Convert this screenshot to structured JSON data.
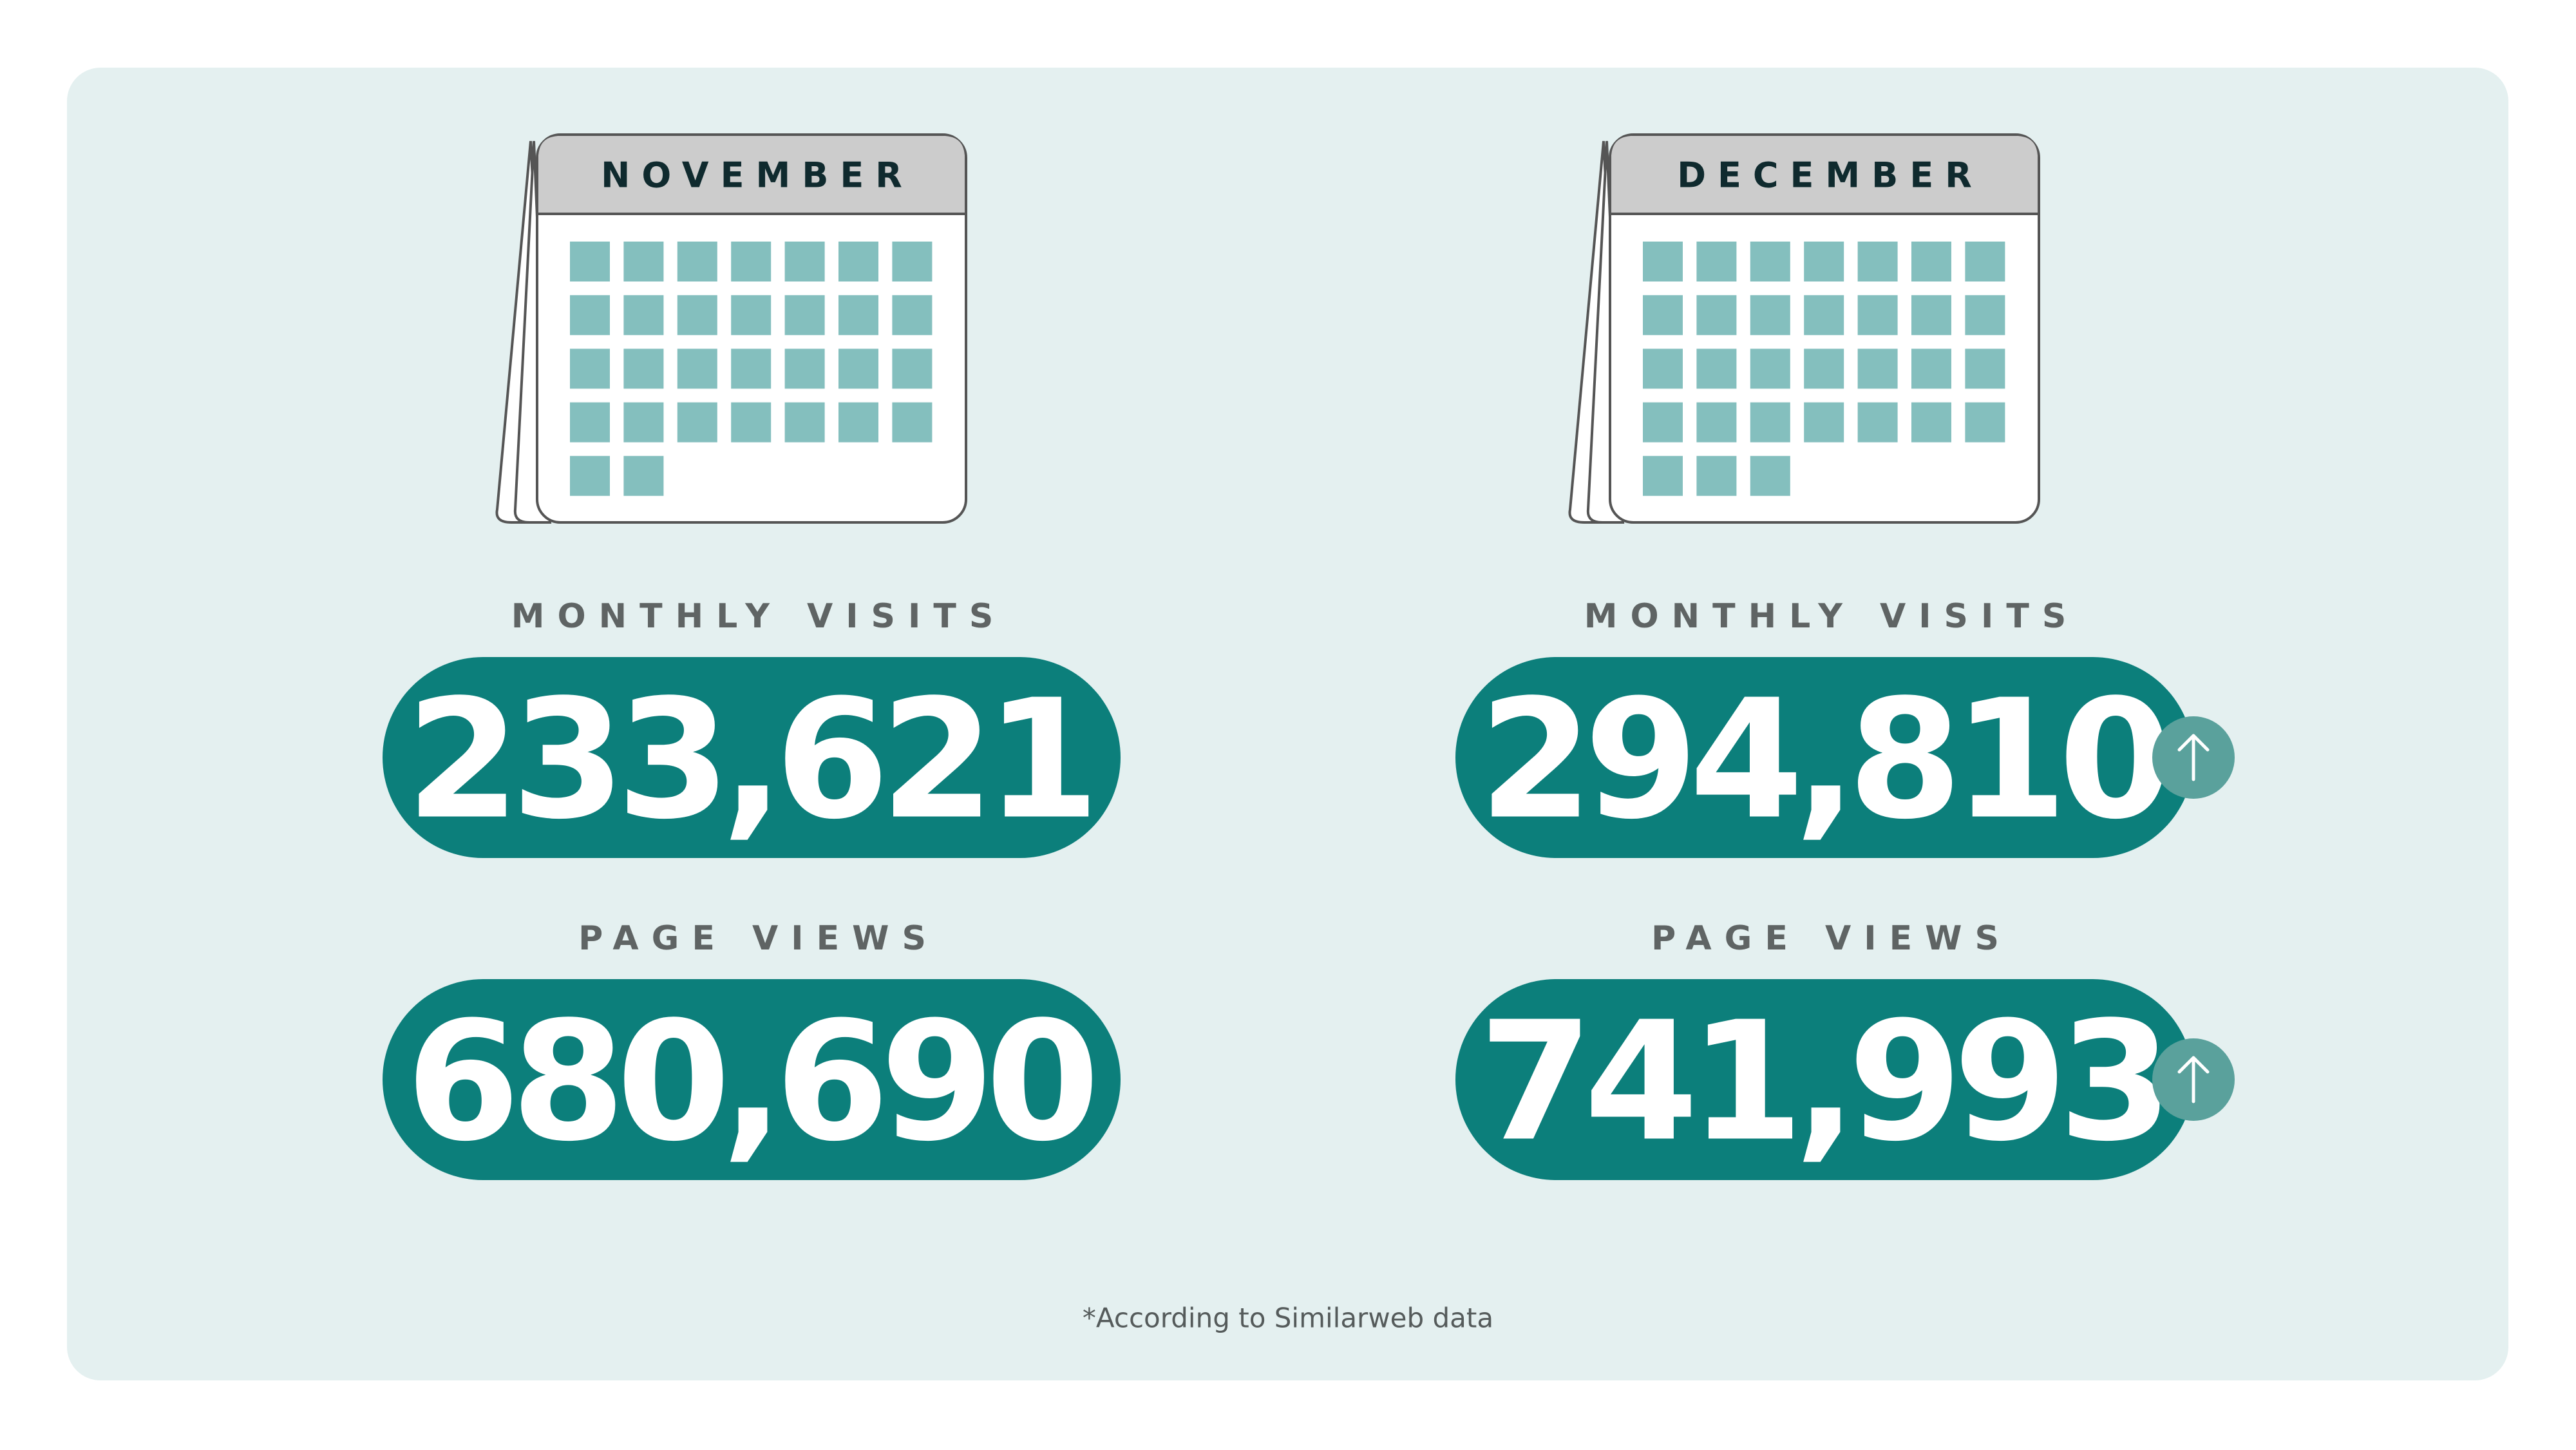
{
  "months": [
    {
      "name": "NOVEMBER",
      "days": 30,
      "monthly_visits_label": "MONTHLY VISITS",
      "monthly_visits": "233,621",
      "page_views_label": "PAGE VIEWS",
      "page_views": "680,690"
    },
    {
      "name": "DECEMBER",
      "days": 31,
      "monthly_visits_label": "MONTHLY VISITS",
      "monthly_visits": "294,810",
      "page_views_label": "PAGE VIEWS",
      "page_views": "741,993"
    }
  ],
  "footnote": "*According to Similarweb data"
}
